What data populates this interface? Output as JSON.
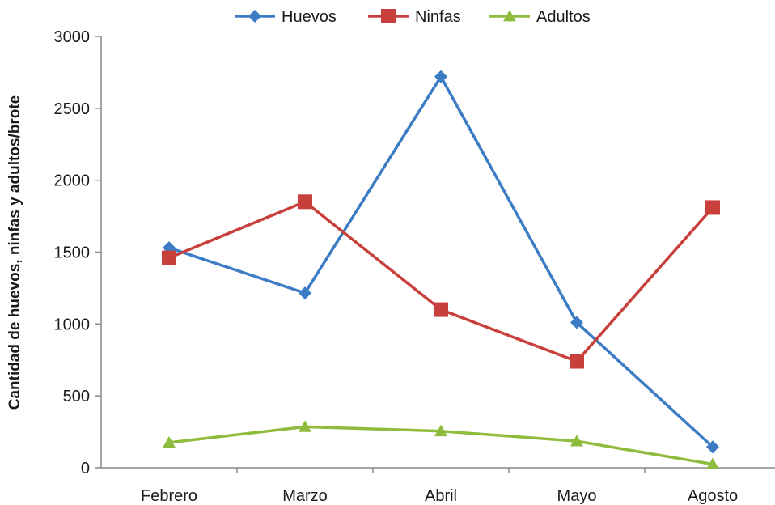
{
  "chart_data": {
    "type": "line",
    "categories": [
      "Febrero",
      "Marzo",
      "Abril",
      "Mayo",
      "Agosto"
    ],
    "series": [
      {
        "name": "Huevos",
        "values": [
          1530,
          1215,
          2720,
          1010,
          145
        ],
        "color": "#3b7cc4",
        "marker": "diamond"
      },
      {
        "name": "Ninfas",
        "values": [
          1460,
          1850,
          1100,
          740,
          1810
        ],
        "color": "#c8403c",
        "marker": "square"
      },
      {
        "name": "Adultos",
        "values": [
          175,
          285,
          255,
          185,
          25
        ],
        "color": "#8fbc3c",
        "marker": "triangle"
      }
    ],
    "title": "",
    "xlabel": "",
    "ylabel": "Cantidad de huevos, ninfas y adultos/brote",
    "ylim": [
      0,
      3000
    ],
    "yticks": [
      "0",
      "500",
      "1000",
      "1500",
      "2000",
      "2500",
      "3000"
    ],
    "grid": false,
    "legend_position": "top-center"
  }
}
